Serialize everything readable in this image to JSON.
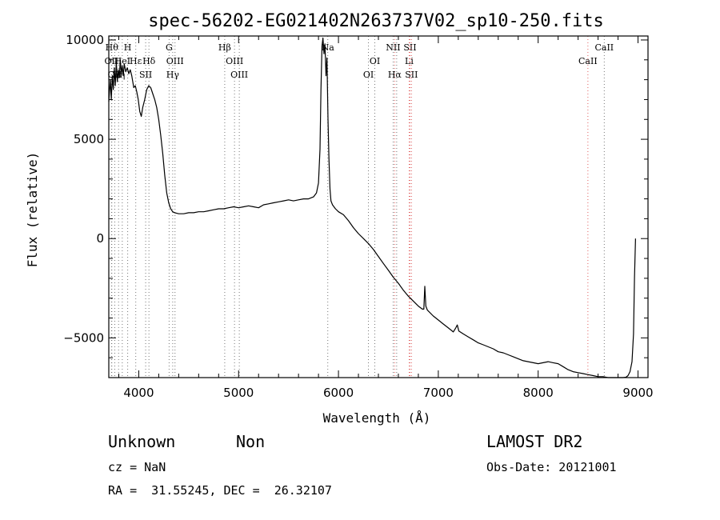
{
  "chart_data": {
    "type": "line",
    "title": "spec-56202-EG021402N263737V02_sp10-250.fits",
    "xlabel": "Wavelength (Å)",
    "ylabel": "Flux (relative)",
    "xlim": [
      3700,
      9100
    ],
    "ylim": [
      -7000,
      10200
    ],
    "x_ticks": [
      4000,
      5000,
      6000,
      7000,
      8000,
      9000
    ],
    "y_ticks": [
      -5000,
      0,
      5000,
      10000
    ],
    "x_tick_labels": [
      "4000",
      "5000",
      "6000",
      "7000",
      "8000",
      "9000"
    ],
    "y_tick_labels": [
      "−5000",
      "0",
      "5000",
      "10000"
    ],
    "grid": false,
    "series": [
      {
        "color": "#000000",
        "points": [
          [
            3700,
            6900
          ],
          [
            3715,
            8000
          ],
          [
            3725,
            7000
          ],
          [
            3735,
            8200
          ],
          [
            3745,
            7500
          ],
          [
            3755,
            8600
          ],
          [
            3765,
            7700
          ],
          [
            3775,
            8900
          ],
          [
            3785,
            7900
          ],
          [
            3795,
            8500
          ],
          [
            3805,
            8100
          ],
          [
            3815,
            9000
          ],
          [
            3825,
            8300
          ],
          [
            3835,
            8700
          ],
          [
            3845,
            8200
          ],
          [
            3855,
            8800
          ],
          [
            3870,
            8400
          ],
          [
            3885,
            8600
          ],
          [
            3900,
            8300
          ],
          [
            3915,
            8500
          ],
          [
            3930,
            8200
          ],
          [
            3950,
            7600
          ],
          [
            3965,
            7700
          ],
          [
            3980,
            7400
          ],
          [
            3995,
            7000
          ],
          [
            4010,
            6400
          ],
          [
            4025,
            6150
          ],
          [
            4040,
            6600
          ],
          [
            4060,
            7000
          ],
          [
            4080,
            7500
          ],
          [
            4100,
            7700
          ],
          [
            4120,
            7600
          ],
          [
            4140,
            7300
          ],
          [
            4160,
            7000
          ],
          [
            4180,
            6600
          ],
          [
            4200,
            6000
          ],
          [
            4220,
            5200
          ],
          [
            4240,
            4300
          ],
          [
            4260,
            3200
          ],
          [
            4280,
            2300
          ],
          [
            4300,
            1800
          ],
          [
            4320,
            1500
          ],
          [
            4340,
            1350
          ],
          [
            4360,
            1300
          ],
          [
            4400,
            1250
          ],
          [
            4450,
            1250
          ],
          [
            4500,
            1300
          ],
          [
            4550,
            1300
          ],
          [
            4600,
            1350
          ],
          [
            4650,
            1350
          ],
          [
            4700,
            1400
          ],
          [
            4750,
            1450
          ],
          [
            4800,
            1500
          ],
          [
            4850,
            1500
          ],
          [
            4900,
            1550
          ],
          [
            4950,
            1600
          ],
          [
            5000,
            1550
          ],
          [
            5050,
            1600
          ],
          [
            5100,
            1650
          ],
          [
            5150,
            1600
          ],
          [
            5200,
            1550
          ],
          [
            5250,
            1700
          ],
          [
            5300,
            1750
          ],
          [
            5350,
            1800
          ],
          [
            5400,
            1850
          ],
          [
            5450,
            1900
          ],
          [
            5500,
            1950
          ],
          [
            5550,
            1900
          ],
          [
            5600,
            1950
          ],
          [
            5650,
            2000
          ],
          [
            5700,
            2000
          ],
          [
            5750,
            2100
          ],
          [
            5780,
            2300
          ],
          [
            5800,
            2800
          ],
          [
            5815,
            4500
          ],
          [
            5825,
            7500
          ],
          [
            5835,
            9700
          ],
          [
            5845,
            10100
          ],
          [
            5855,
            9300
          ],
          [
            5865,
            9800
          ],
          [
            5875,
            8200
          ],
          [
            5885,
            9100
          ],
          [
            5895,
            6000
          ],
          [
            5905,
            4000
          ],
          [
            5915,
            2500
          ],
          [
            5925,
            1900
          ],
          [
            5940,
            1700
          ],
          [
            5970,
            1500
          ],
          [
            6000,
            1350
          ],
          [
            6050,
            1200
          ],
          [
            6100,
            900
          ],
          [
            6150,
            550
          ],
          [
            6200,
            250
          ],
          [
            6250,
            0
          ],
          [
            6300,
            -250
          ],
          [
            6350,
            -550
          ],
          [
            6400,
            -900
          ],
          [
            6450,
            -1250
          ],
          [
            6500,
            -1600
          ],
          [
            6550,
            -1950
          ],
          [
            6600,
            -2250
          ],
          [
            6650,
            -2600
          ],
          [
            6700,
            -2900
          ],
          [
            6750,
            -3150
          ],
          [
            6800,
            -3400
          ],
          [
            6840,
            -3550
          ],
          [
            6855,
            -3550
          ],
          [
            6865,
            -2400
          ],
          [
            6875,
            -3400
          ],
          [
            6890,
            -3600
          ],
          [
            6950,
            -3900
          ],
          [
            7000,
            -4100
          ],
          [
            7050,
            -4300
          ],
          [
            7100,
            -4500
          ],
          [
            7150,
            -4700
          ],
          [
            7175,
            -4500
          ],
          [
            7190,
            -4350
          ],
          [
            7205,
            -4650
          ],
          [
            7250,
            -4800
          ],
          [
            7300,
            -4950
          ],
          [
            7350,
            -5100
          ],
          [
            7400,
            -5250
          ],
          [
            7450,
            -5350
          ],
          [
            7500,
            -5450
          ],
          [
            7550,
            -5550
          ],
          [
            7600,
            -5700
          ],
          [
            7650,
            -5750
          ],
          [
            7700,
            -5850
          ],
          [
            7750,
            -5950
          ],
          [
            7800,
            -6050
          ],
          [
            7850,
            -6150
          ],
          [
            7900,
            -6200
          ],
          [
            7950,
            -6250
          ],
          [
            8000,
            -6300
          ],
          [
            8050,
            -6250
          ],
          [
            8100,
            -6200
          ],
          [
            8150,
            -6250
          ],
          [
            8200,
            -6300
          ],
          [
            8250,
            -6450
          ],
          [
            8300,
            -6600
          ],
          [
            8350,
            -6700
          ],
          [
            8400,
            -6750
          ],
          [
            8450,
            -6800
          ],
          [
            8500,
            -6850
          ],
          [
            8550,
            -6900
          ],
          [
            8600,
            -6950
          ],
          [
            8650,
            -6950
          ],
          [
            8700,
            -7000
          ],
          [
            8750,
            -7000
          ],
          [
            8800,
            -7000
          ],
          [
            8850,
            -7000
          ],
          [
            8880,
            -6980
          ],
          [
            8900,
            -6900
          ],
          [
            8920,
            -6700
          ],
          [
            8940,
            -6200
          ],
          [
            8955,
            -4800
          ],
          [
            8965,
            -2000
          ],
          [
            8975,
            0
          ]
        ]
      }
    ],
    "line_markers": [
      {
        "x": 3730,
        "labels": [
          "Hθ"
        ],
        "rows": [
          1
        ],
        "color": "#777777"
      },
      {
        "x": 3727,
        "labels": [
          "OII"
        ],
        "rows": [
          2
        ],
        "color": "#777777"
      },
      {
        "x": 3760,
        "labels": [
          "OII"
        ],
        "rows": [
          3
        ],
        "color": "#777777"
      },
      {
        "x": 3798,
        "labels": [
          "Hη"
        ],
        "rows": [
          3
        ],
        "color": "#777777"
      },
      {
        "x": 3835,
        "labels": [
          "HeI"
        ],
        "rows": [
          2
        ],
        "color": "#777777"
      },
      {
        "x": 3889,
        "labels": [
          "H"
        ],
        "rows": [
          1
        ],
        "color": "#777777"
      },
      {
        "x": 3970,
        "labels": [
          "Hε"
        ],
        "rows": [
          2
        ],
        "color": "#777777"
      },
      {
        "x": 4069,
        "labels": [
          "SII"
        ],
        "rows": [
          3
        ],
        "color": "#777777"
      },
      {
        "x": 4102,
        "labels": [
          "Hδ"
        ],
        "rows": [
          2
        ],
        "color": "#777777"
      },
      {
        "x": 4304,
        "labels": [
          "G"
        ],
        "rows": [
          1
        ],
        "color": "#777777"
      },
      {
        "x": 4340,
        "labels": [
          "Hγ"
        ],
        "rows": [
          3
        ],
        "color": "#777777"
      },
      {
        "x": 4363,
        "labels": [
          "OIII"
        ],
        "rows": [
          2
        ],
        "color": "#777777"
      },
      {
        "x": 4861,
        "labels": [
          "Hβ"
        ],
        "rows": [
          1
        ],
        "color": "#777777"
      },
      {
        "x": 4959,
        "labels": [
          "OIII"
        ],
        "rows": [
          2
        ],
        "color": "#777777"
      },
      {
        "x": 5007,
        "labels": [
          "OIII"
        ],
        "rows": [
          3
        ],
        "color": "#777777"
      },
      {
        "x": 5893,
        "labels": [
          "Na"
        ],
        "rows": [
          1
        ],
        "color": "#777777"
      },
      {
        "x": 6300,
        "labels": [
          "OI"
        ],
        "rows": [
          3
        ],
        "color": "#777777"
      },
      {
        "x": 6364,
        "labels": [
          "OI"
        ],
        "rows": [
          2
        ],
        "color": "#777777"
      },
      {
        "x": 6548,
        "labels": [
          "NII"
        ],
        "rows": [
          1
        ],
        "color": "#777777"
      },
      {
        "x": 6563,
        "labels": [
          "Hα"
        ],
        "rows": [
          3
        ],
        "color": "#e06060"
      },
      {
        "x": 6583,
        "labels": [],
        "rows": [],
        "color": "#777777"
      },
      {
        "x": 6708,
        "labels": [
          "Li"
        ],
        "rows": [
          2
        ],
        "color": "#e06060"
      },
      {
        "x": 6716,
        "labels": [
          "SII"
        ],
        "rows": [
          1
        ],
        "color": "#e06060"
      },
      {
        "x": 6731,
        "labels": [
          "SII"
        ],
        "rows": [
          3
        ],
        "color": "#e06060"
      },
      {
        "x": 8498,
        "labels": [
          "CaII"
        ],
        "rows": [
          2
        ],
        "color": "#e06060"
      },
      {
        "x": 8662,
        "labels": [
          "CaII"
        ],
        "rows": [
          1
        ],
        "color": "#777777"
      }
    ]
  },
  "info": {
    "object_class": "Unknown",
    "object_subclass": "Non",
    "release": "LAMOST DR2",
    "cz": "cz = NaN",
    "obs_date": "Obs-Date: 20121001",
    "coords": "RA =  31.55245, DEC =  26.32107"
  }
}
